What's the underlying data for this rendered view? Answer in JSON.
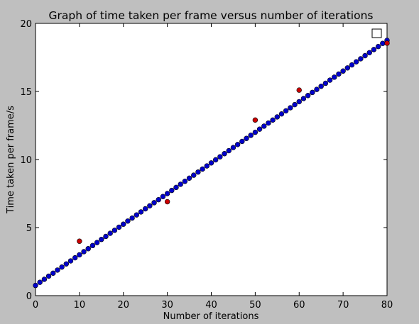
{
  "chart_data": {
    "type": "scatter",
    "title": "Graph of time taken per frame versus number of iterations",
    "xlabel": "Number of iterations",
    "ylabel": "Time taken per frame/s",
    "xlim": [
      0,
      80
    ],
    "ylim": [
      0,
      20
    ],
    "xticks": [
      0,
      10,
      20,
      30,
      40,
      50,
      60,
      70,
      80
    ],
    "yticks": [
      0,
      5,
      10,
      15,
      20
    ],
    "grid": false,
    "legend": "top-right (empty box)",
    "series": [
      {
        "color": "#0000cc",
        "marker": "circle",
        "x": [
          0,
          1,
          2,
          3,
          4,
          5,
          6,
          7,
          8,
          9,
          10,
          11,
          12,
          13,
          14,
          15,
          16,
          17,
          18,
          19,
          20,
          21,
          22,
          23,
          24,
          25,
          26,
          27,
          28,
          29,
          30,
          31,
          32,
          33,
          34,
          35,
          36,
          37,
          38,
          39,
          40,
          41,
          42,
          43,
          44,
          45,
          46,
          47,
          48,
          49,
          50,
          51,
          52,
          53,
          54,
          55,
          56,
          57,
          58,
          59,
          60,
          61,
          62,
          63,
          64,
          65,
          66,
          67,
          68,
          69,
          70,
          71,
          72,
          73,
          74,
          75,
          76,
          77,
          78,
          79,
          80
        ],
        "y": [
          0.75,
          0.98,
          1.2,
          1.43,
          1.65,
          1.88,
          2.1,
          2.33,
          2.55,
          2.78,
          3.0,
          3.23,
          3.45,
          3.68,
          3.9,
          4.13,
          4.35,
          4.58,
          4.8,
          5.03,
          5.25,
          5.48,
          5.7,
          5.93,
          6.15,
          6.38,
          6.6,
          6.83,
          7.05,
          7.28,
          7.5,
          7.73,
          7.95,
          8.18,
          8.4,
          8.63,
          8.85,
          9.08,
          9.3,
          9.53,
          9.75,
          9.98,
          10.2,
          10.43,
          10.65,
          10.88,
          11.1,
          11.33,
          11.55,
          11.78,
          12.0,
          12.23,
          12.45,
          12.68,
          12.9,
          13.13,
          13.35,
          13.58,
          13.8,
          14.03,
          14.25,
          14.48,
          14.7,
          14.93,
          15.15,
          15.38,
          15.6,
          15.83,
          16.05,
          16.28,
          16.5,
          16.73,
          16.95,
          17.18,
          17.4,
          17.63,
          17.85,
          18.08,
          18.3,
          18.53,
          18.75
        ]
      },
      {
        "color": "#cc0000",
        "marker": "circle",
        "x": [
          10,
          30,
          50,
          60,
          80
        ],
        "y": [
          4.0,
          6.9,
          12.9,
          15.1,
          18.55
        ]
      }
    ]
  }
}
